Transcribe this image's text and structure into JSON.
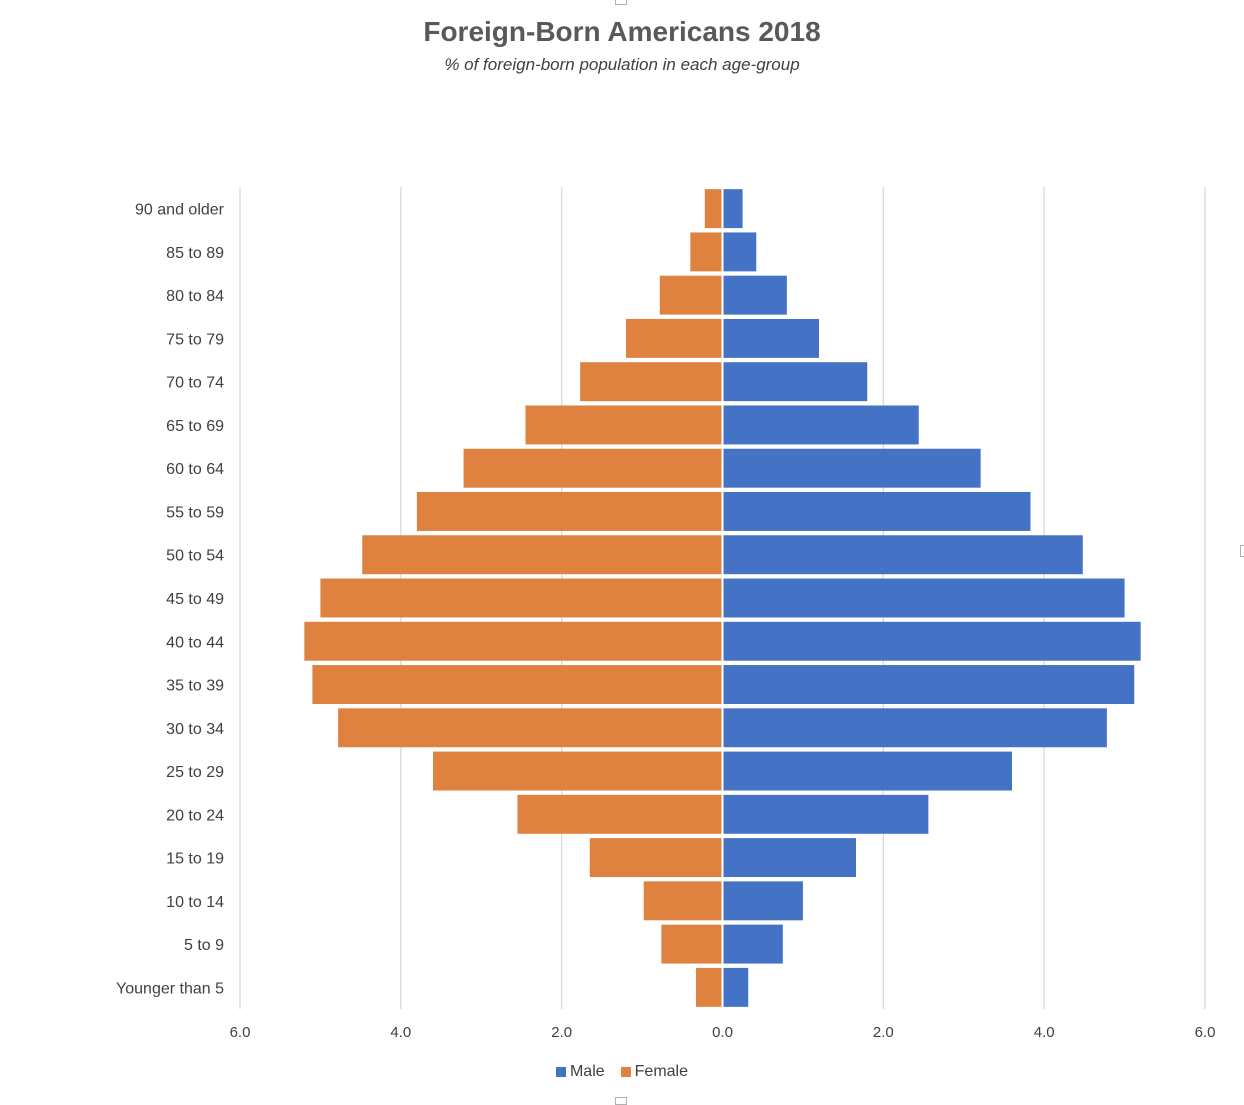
{
  "title": "Foreign-Born Americans 2018",
  "subtitle": "% of foreign-born population in each age-group",
  "colors": {
    "male": "#4472C4",
    "female": "#E0823F",
    "grid": "#D9D9D9",
    "axis_text": "#404040"
  },
  "legend": {
    "male_label": "Male",
    "female_label": "Female"
  },
  "chart_data": {
    "type": "bar",
    "orientation": "horizontal",
    "title": "Foreign-Born Americans 2018",
    "subtitle": "% of foreign-born population in each age-group",
    "categories": [
      "90 and older",
      "85 to 89",
      "80 to 84",
      "75 to 79",
      "70 to 74",
      "65 to 69",
      "60 to 64",
      "55 to 59",
      "50 to 54",
      "45 to 49",
      "40 to 44",
      "35 to 39",
      "30 to 34",
      "25 to 29",
      "20 to 24",
      "15 to 19",
      "10 to 14",
      "5 to 9",
      "Younger than 5"
    ],
    "series": [
      {
        "name": "Male",
        "values": [
          0.25,
          0.42,
          0.8,
          1.2,
          1.8,
          2.44,
          3.21,
          3.83,
          4.48,
          5.0,
          5.2,
          5.12,
          4.78,
          3.6,
          2.56,
          1.66,
          1.0,
          0.75,
          0.32
        ]
      },
      {
        "name": "Female",
        "values": [
          0.22,
          0.4,
          0.78,
          1.2,
          1.77,
          2.45,
          3.22,
          3.8,
          4.48,
          5.0,
          5.2,
          5.1,
          4.78,
          3.6,
          2.55,
          1.65,
          0.98,
          0.76,
          0.33
        ]
      }
    ],
    "xlim": [
      -6,
      6
    ],
    "xticks": [
      -6,
      -4,
      -2,
      0,
      2,
      4,
      6
    ],
    "xtick_labels": [
      "6.0",
      "4.0",
      "2.0",
      "0.0",
      "2.0",
      "4.0",
      "6.0"
    ],
    "xlabel": "",
    "ylabel": "",
    "grid": true,
    "legend_position": "bottom"
  }
}
